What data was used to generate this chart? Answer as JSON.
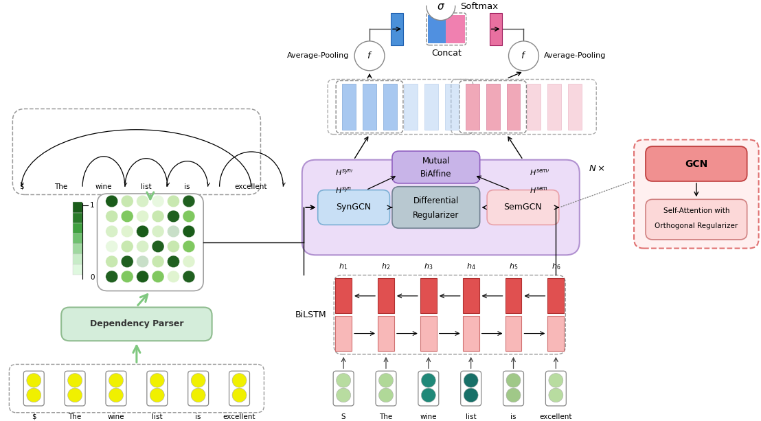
{
  "bg_color": "#ffffff",
  "words_left": [
    "$",
    "The",
    "wine",
    "list",
    "is",
    "excellent"
  ],
  "words_right": [
    "S",
    "The",
    "wine",
    "list",
    "is",
    "excellent"
  ],
  "h_labels": [
    "h_1",
    "h_2",
    "h_3",
    "h_4",
    "h_5",
    "h_6"
  ],
  "token_yellow": "#f0f000",
  "token_yellow2": "#e8e830",
  "dep_parser_fc": "#d4edda",
  "dep_parser_ec": "#8fbc8f",
  "syngcn_fc": "#c8dff5",
  "syngcn_ec": "#7bafd4",
  "semgcn_fc": "#fadadd",
  "semgcn_ec": "#e8a0a8",
  "diff_fc": "#b8c8d0",
  "diff_ec": "#708090",
  "mutual_fc": "#c8b4e8",
  "mutual_ec": "#9060c0",
  "gcn_block_fc": "#ecddf8",
  "gcn_block_ec": "#b090d0",
  "gcn_detail_outer_fc": "#fff0f0",
  "gcn_detail_outer_ec": "#e07070",
  "gcn_fc": "#f09090",
  "gcn_ec": "#c04040",
  "selfatt_fc": "#fcd8d8",
  "selfatt_ec": "#d08080",
  "blue_col": "#a8c8f0",
  "pink_col": "#f0a8b8",
  "blue_bar": "#4a90d9",
  "pink_bar": "#e870a0",
  "concat_blue": "#5090e0",
  "concat_pink": "#f080b0",
  "red_dot": "#e82020",
  "yellow_dot": "#f0d000",
  "blue_dot": "#1040a0",
  "bilstm_top": "#e05050",
  "bilstm_bot": "#f8b8b8",
  "green_arrow": "#80c880",
  "matrix_colors": [
    [
      "#1a5c1a",
      "#c8e8b0",
      "#d8f0c8",
      "#e8f8e0",
      "#c8e8b0",
      "#206020"
    ],
    [
      "#c8e8b0",
      "#80c860",
      "#e0f4d0",
      "#c8e8b0",
      "#206020",
      "#80c860"
    ],
    [
      "#d8f0c8",
      "#e0f4d0",
      "#1a5c1a",
      "#d8f0c8",
      "#c8dfc8",
      "#1a5c1a"
    ],
    [
      "#e8f8e0",
      "#c8e8b0",
      "#d8f0c8",
      "#206020",
      "#c8e8b0",
      "#80c860"
    ],
    [
      "#c8e8b0",
      "#206020",
      "#c8dfc8",
      "#c8e8b0",
      "#206020",
      "#e0f4d0"
    ],
    [
      "#206020",
      "#80c860",
      "#1a5c1a",
      "#80c860",
      "#e0f4d0",
      "#206020"
    ]
  ],
  "colorbar_colors": [
    "#1a5c1a",
    "#2a7a2a",
    "#40a040",
    "#70c070",
    "#a0d8a0",
    "#c8ecc8",
    "#dff8df"
  ],
  "teal1": "#88c888",
  "teal2": "#40a898",
  "teal3": "#208878"
}
